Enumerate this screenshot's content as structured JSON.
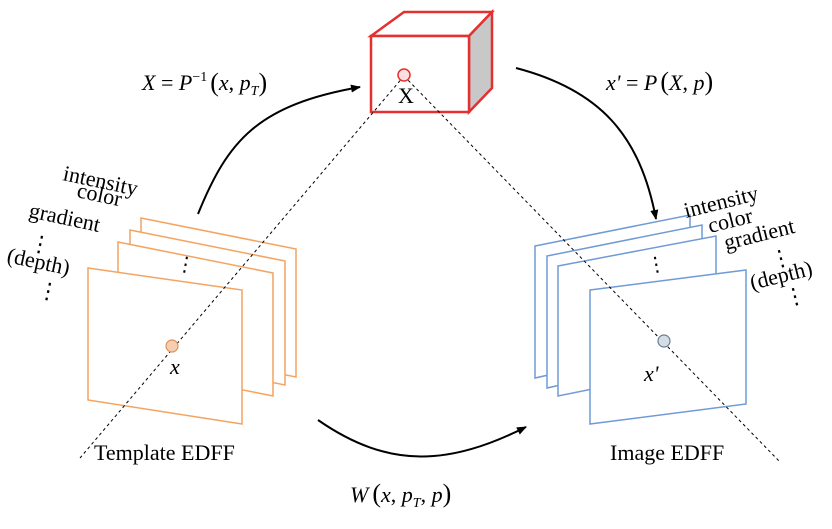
{
  "labels": {
    "template_caption": "Template EDFF",
    "image_caption": "Image EDFF",
    "point_3d": "X",
    "point_template": "x",
    "point_image": "x'"
  },
  "left_channels": [
    "intensity",
    "color",
    "gradient",
    "⋮",
    "(depth)",
    "⋮"
  ],
  "right_channels": [
    "intensity",
    "color",
    "gradient",
    "⋮",
    "(depth)",
    "⋮"
  ],
  "stack_ellipsis": "⋮",
  "equations": {
    "back_projection": {
      "lhs": "X",
      "eq": " = ",
      "P": "P",
      "sup": "−1",
      "lparen": "(",
      "x": "x",
      "comma": ", ",
      "p": "p",
      "sub": "T",
      "rparen": ")"
    },
    "projection": {
      "lhs": "x'",
      "eq": " = ",
      "P": "P",
      "lparen": "(",
      "X": "X",
      "comma": ", ",
      "p": "p",
      "rparen": ")"
    },
    "warp": {
      "W": "W",
      "lparen": "(",
      "x": "x",
      "comma1": ", ",
      "p1": "p",
      "sub": "T",
      "comma2": ", ",
      "p2": "p",
      "rparen": ")"
    }
  },
  "colors": {
    "template_frames": "#f4a460",
    "image_frames": "#6f9bd6",
    "cube": "#e53030",
    "cube_side": "#c8c8c8",
    "template_point": "#f5cdb0",
    "image_point": "#d4dde6",
    "point_3d_fill": "#fbe0e0"
  }
}
